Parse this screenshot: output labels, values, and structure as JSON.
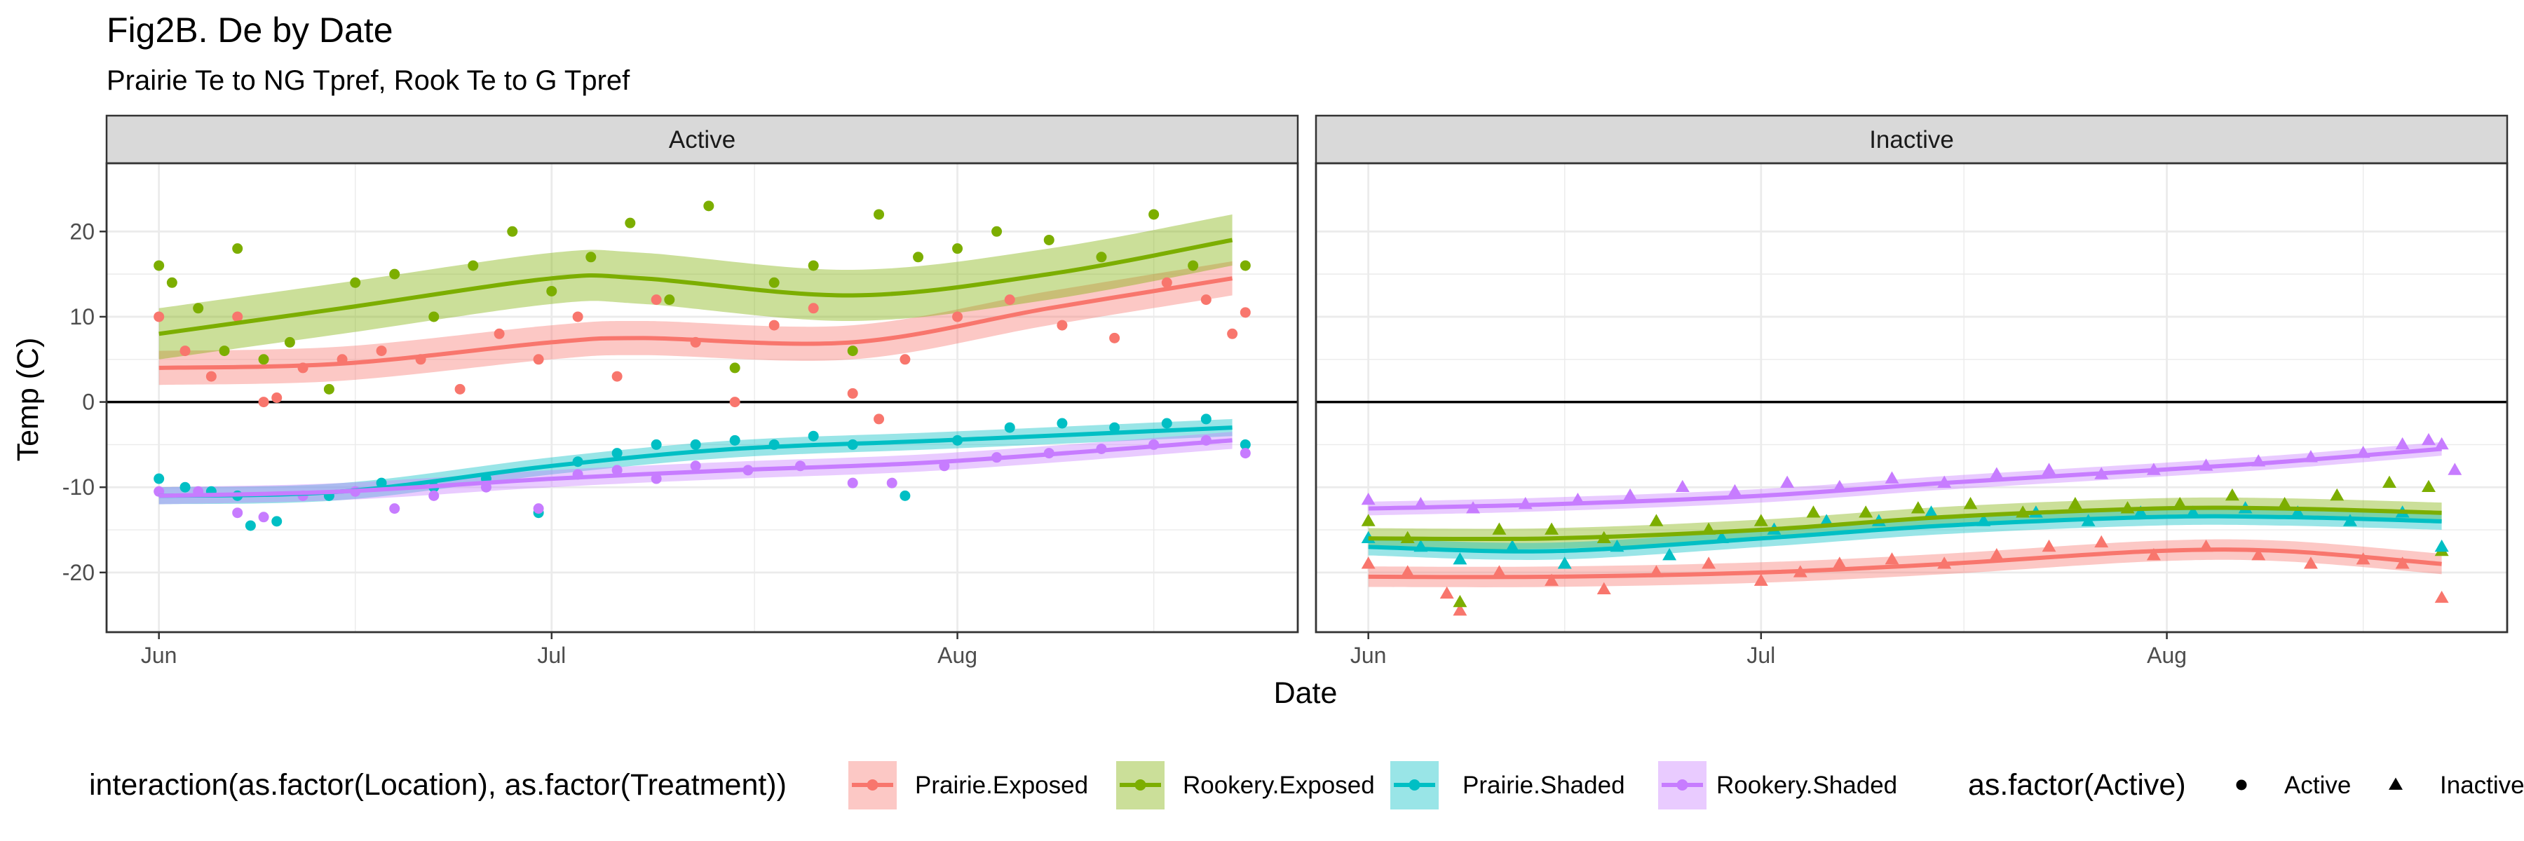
{
  "title": "Fig2B. De by Date",
  "subtitle": "Prairie Te to NG Tpref, Rook Te to G Tpref",
  "chart_data": {
    "type": "scatter",
    "facets": [
      "Active",
      "Inactive"
    ],
    "xlabel": "Date",
    "ylabel": "Temp (C)",
    "x_ticks": [
      {
        "label": "Jun",
        "date": "2021-06-01"
      },
      {
        "label": "Jul",
        "date": "2021-07-01"
      },
      {
        "label": "Aug",
        "date": "2021-08-01"
      }
    ],
    "xlim": [
      "2021-05-28",
      "2021-08-27"
    ],
    "y_ticks": [
      -20,
      -10,
      0,
      10,
      20
    ],
    "ylim": [
      -27,
      28
    ],
    "reference_line_y": 0,
    "grid": true,
    "smoother": "loess with confidence band",
    "colors": {
      "Prairie.Exposed": "#F8766D",
      "Rookery.Exposed": "#7CAE00",
      "Prairie.Shaded": "#00BFC4",
      "Rookery.Shaded": "#C77CFF"
    },
    "shapes": {
      "Active": "circle",
      "Inactive": "triangle"
    },
    "legend": {
      "position": "bottom",
      "color_title": "interaction(as.factor(Location), as.factor(Treatment))",
      "color_entries": [
        "Prairie.Exposed",
        "Rookery.Exposed",
        "Prairie.Shaded",
        "Rookery.Shaded"
      ],
      "shape_title": "as.factor(Active)",
      "shape_entries": [
        "Active",
        "Inactive"
      ]
    },
    "trend": {
      "Active": {
        "Prairie.Exposed": {
          "x": [
            "2021-06-01",
            "2021-06-15",
            "2021-07-01",
            "2021-07-08",
            "2021-07-24",
            "2021-08-08",
            "2021-08-22"
          ],
          "y": [
            4,
            4.5,
            7,
            7.5,
            7,
            11,
            14.5
          ],
          "band": 2
        },
        "Rookery.Exposed": {
          "x": [
            "2021-06-01",
            "2021-06-15",
            "2021-07-01",
            "2021-07-08",
            "2021-07-24",
            "2021-08-08",
            "2021-08-22"
          ],
          "y": [
            8,
            11,
            14.5,
            14.5,
            12.5,
            15,
            19
          ],
          "band": 3
        },
        "Prairie.Shaded": {
          "x": [
            "2021-06-01",
            "2021-06-15",
            "2021-07-01",
            "2021-07-15",
            "2021-07-31",
            "2021-08-22"
          ],
          "y": [
            -11,
            -10.5,
            -7.5,
            -5.5,
            -4.5,
            -3
          ],
          "band": 1
        },
        "Rookery.Shaded": {
          "x": [
            "2021-06-01",
            "2021-06-15",
            "2021-07-01",
            "2021-07-15",
            "2021-07-31",
            "2021-08-22"
          ],
          "y": [
            -11,
            -10.5,
            -9,
            -8,
            -7,
            -4.5
          ],
          "band": 1
        }
      },
      "Inactive": {
        "Prairie.Exposed": {
          "x": [
            "2021-06-01",
            "2021-06-15",
            "2021-07-01",
            "2021-07-15",
            "2021-07-31",
            "2021-08-10",
            "2021-08-22"
          ],
          "y": [
            -20.5,
            -20.5,
            -20,
            -19,
            -17.5,
            -17.5,
            -19
          ],
          "band": 1.2
        },
        "Rookery.Exposed": {
          "x": [
            "2021-06-01",
            "2021-06-15",
            "2021-07-01",
            "2021-07-15",
            "2021-07-31",
            "2021-08-10",
            "2021-08-22"
          ],
          "y": [
            -16,
            -16,
            -15,
            -13.5,
            -12.5,
            -12.5,
            -13
          ],
          "band": 1.2
        },
        "Prairie.Shaded": {
          "x": [
            "2021-06-01",
            "2021-06-15",
            "2021-07-01",
            "2021-07-15",
            "2021-07-31",
            "2021-08-10",
            "2021-08-22"
          ],
          "y": [
            -17,
            -17.5,
            -16,
            -14.5,
            -13.5,
            -13.5,
            -14
          ],
          "band": 1
        },
        "Rookery.Shaded": {
          "x": [
            "2021-06-01",
            "2021-06-15",
            "2021-07-01",
            "2021-07-15",
            "2021-07-31",
            "2021-08-10",
            "2021-08-22"
          ],
          "y": [
            -12.5,
            -12,
            -11,
            -9.5,
            -8,
            -7,
            -5.5
          ],
          "band": 0.8
        }
      }
    },
    "points": {
      "Active": {
        "Prairie.Exposed": [
          [
            "2021-06-01",
            10
          ],
          [
            "2021-06-03",
            6
          ],
          [
            "2021-06-05",
            3
          ],
          [
            "2021-06-07",
            10
          ],
          [
            "2021-06-09",
            0
          ],
          [
            "2021-06-10",
            0.5
          ],
          [
            "2021-06-12",
            4
          ],
          [
            "2021-06-15",
            5
          ],
          [
            "2021-06-18",
            6
          ],
          [
            "2021-06-21",
            5
          ],
          [
            "2021-06-24",
            1.5
          ],
          [
            "2021-06-27",
            8
          ],
          [
            "2021-06-30",
            5
          ],
          [
            "2021-07-03",
            10
          ],
          [
            "2021-07-06",
            3
          ],
          [
            "2021-07-09",
            12
          ],
          [
            "2021-07-12",
            7
          ],
          [
            "2021-07-15",
            0
          ],
          [
            "2021-07-18",
            9
          ],
          [
            "2021-07-21",
            11
          ],
          [
            "2021-07-24",
            1
          ],
          [
            "2021-07-26",
            -2
          ],
          [
            "2021-07-28",
            5
          ],
          [
            "2021-08-01",
            10
          ],
          [
            "2021-08-05",
            12
          ],
          [
            "2021-08-09",
            9
          ],
          [
            "2021-08-13",
            7.5
          ],
          [
            "2021-08-17",
            14
          ],
          [
            "2021-08-20",
            12
          ],
          [
            "2021-08-22",
            8
          ],
          [
            "2021-08-23",
            10.5
          ]
        ],
        "Rookery.Exposed": [
          [
            "2021-06-01",
            16
          ],
          [
            "2021-06-02",
            14
          ],
          [
            "2021-06-04",
            11
          ],
          [
            "2021-06-06",
            6
          ],
          [
            "2021-06-07",
            18
          ],
          [
            "2021-06-09",
            5
          ],
          [
            "2021-06-11",
            7
          ],
          [
            "2021-06-14",
            1.5
          ],
          [
            "2021-06-16",
            14
          ],
          [
            "2021-06-19",
            15
          ],
          [
            "2021-06-22",
            10
          ],
          [
            "2021-06-25",
            16
          ],
          [
            "2021-06-28",
            20
          ],
          [
            "2021-07-01",
            13
          ],
          [
            "2021-07-04",
            17
          ],
          [
            "2021-07-07",
            21
          ],
          [
            "2021-07-10",
            12
          ],
          [
            "2021-07-13",
            23
          ],
          [
            "2021-07-15",
            4
          ],
          [
            "2021-07-18",
            14
          ],
          [
            "2021-07-21",
            16
          ],
          [
            "2021-07-24",
            6
          ],
          [
            "2021-07-26",
            22
          ],
          [
            "2021-07-29",
            17
          ],
          [
            "2021-08-01",
            18
          ],
          [
            "2021-08-04",
            20
          ],
          [
            "2021-08-08",
            19
          ],
          [
            "2021-08-12",
            17
          ],
          [
            "2021-08-16",
            22
          ],
          [
            "2021-08-19",
            16
          ],
          [
            "2021-08-23",
            16
          ]
        ],
        "Prairie.Shaded": [
          [
            "2021-06-01",
            -9
          ],
          [
            "2021-06-03",
            -10
          ],
          [
            "2021-06-05",
            -10.5
          ],
          [
            "2021-06-07",
            -11
          ],
          [
            "2021-06-08",
            -14.5
          ],
          [
            "2021-06-10",
            -14
          ],
          [
            "2021-06-14",
            -11
          ],
          [
            "2021-06-18",
            -9.5
          ],
          [
            "2021-06-22",
            -10
          ],
          [
            "2021-06-26",
            -9
          ],
          [
            "2021-06-30",
            -13
          ],
          [
            "2021-07-03",
            -7
          ],
          [
            "2021-07-06",
            -6
          ],
          [
            "2021-07-09",
            -5
          ],
          [
            "2021-07-12",
            -5
          ],
          [
            "2021-07-15",
            -4.5
          ],
          [
            "2021-07-18",
            -5
          ],
          [
            "2021-07-21",
            -4
          ],
          [
            "2021-07-24",
            -5
          ],
          [
            "2021-07-28",
            -11
          ],
          [
            "2021-08-01",
            -4.5
          ],
          [
            "2021-08-05",
            -3
          ],
          [
            "2021-08-09",
            -2.5
          ],
          [
            "2021-08-13",
            -3
          ],
          [
            "2021-08-17",
            -2.5
          ],
          [
            "2021-08-20",
            -2
          ],
          [
            "2021-08-23",
            -5
          ]
        ],
        "Rookery.Shaded": [
          [
            "2021-06-01",
            -10.5
          ],
          [
            "2021-06-04",
            -10.5
          ],
          [
            "2021-06-07",
            -13
          ],
          [
            "2021-06-09",
            -13.5
          ],
          [
            "2021-06-12",
            -11
          ],
          [
            "2021-06-16",
            -10.5
          ],
          [
            "2021-06-19",
            -12.5
          ],
          [
            "2021-06-22",
            -11
          ],
          [
            "2021-06-26",
            -10
          ],
          [
            "2021-06-30",
            -12.5
          ],
          [
            "2021-07-03",
            -8.5
          ],
          [
            "2021-07-06",
            -8
          ],
          [
            "2021-07-09",
            -9
          ],
          [
            "2021-07-12",
            -7.5
          ],
          [
            "2021-07-16",
            -8
          ],
          [
            "2021-07-20",
            -7.5
          ],
          [
            "2021-07-24",
            -9.5
          ],
          [
            "2021-07-27",
            -9.5
          ],
          [
            "2021-07-31",
            -7.5
          ],
          [
            "2021-08-04",
            -6.5
          ],
          [
            "2021-08-08",
            -6
          ],
          [
            "2021-08-12",
            -5.5
          ],
          [
            "2021-08-16",
            -5
          ],
          [
            "2021-08-20",
            -4.5
          ],
          [
            "2021-08-23",
            -6
          ]
        ]
      },
      "Inactive": {
        "Prairie.Exposed": [
          [
            "2021-06-01",
            -19
          ],
          [
            "2021-06-04",
            -20
          ],
          [
            "2021-06-07",
            -22.5
          ],
          [
            "2021-06-08",
            -24.5
          ],
          [
            "2021-06-11",
            -20
          ],
          [
            "2021-06-15",
            -21
          ],
          [
            "2021-06-19",
            -22
          ],
          [
            "2021-06-23",
            -20
          ],
          [
            "2021-06-27",
            -19
          ],
          [
            "2021-07-01",
            -21
          ],
          [
            "2021-07-04",
            -20
          ],
          [
            "2021-07-07",
            -19
          ],
          [
            "2021-07-11",
            -18.5
          ],
          [
            "2021-07-15",
            -19
          ],
          [
            "2021-07-19",
            -18
          ],
          [
            "2021-07-23",
            -17
          ],
          [
            "2021-07-27",
            -16.5
          ],
          [
            "2021-07-31",
            -18
          ],
          [
            "2021-08-04",
            -17
          ],
          [
            "2021-08-08",
            -18
          ],
          [
            "2021-08-12",
            -19
          ],
          [
            "2021-08-16",
            -18.5
          ],
          [
            "2021-08-19",
            -19
          ],
          [
            "2021-08-22",
            -23
          ]
        ],
        "Rookery.Exposed": [
          [
            "2021-06-01",
            -14
          ],
          [
            "2021-06-04",
            -16
          ],
          [
            "2021-06-08",
            -23.5
          ],
          [
            "2021-06-11",
            -15
          ],
          [
            "2021-06-15",
            -15
          ],
          [
            "2021-06-19",
            -16
          ],
          [
            "2021-06-23",
            -14
          ],
          [
            "2021-06-27",
            -15
          ],
          [
            "2021-07-01",
            -14
          ],
          [
            "2021-07-05",
            -13
          ],
          [
            "2021-07-09",
            -13
          ],
          [
            "2021-07-13",
            -12.5
          ],
          [
            "2021-07-17",
            -12
          ],
          [
            "2021-07-21",
            -13
          ],
          [
            "2021-07-25",
            -12
          ],
          [
            "2021-07-29",
            -12.5
          ],
          [
            "2021-08-02",
            -12
          ],
          [
            "2021-08-06",
            -11
          ],
          [
            "2021-08-10",
            -12
          ],
          [
            "2021-08-14",
            -11
          ],
          [
            "2021-08-18",
            -9.5
          ],
          [
            "2021-08-21",
            -10
          ],
          [
            "2021-08-22",
            -17.5
          ]
        ],
        "Prairie.Shaded": [
          [
            "2021-06-01",
            -16
          ],
          [
            "2021-06-05",
            -17
          ],
          [
            "2021-06-08",
            -18.5
          ],
          [
            "2021-06-12",
            -17
          ],
          [
            "2021-06-16",
            -19
          ],
          [
            "2021-06-20",
            -17
          ],
          [
            "2021-06-24",
            -18
          ],
          [
            "2021-06-28",
            -16
          ],
          [
            "2021-07-02",
            -15
          ],
          [
            "2021-07-06",
            -14
          ],
          [
            "2021-07-10",
            -14
          ],
          [
            "2021-07-14",
            -13
          ],
          [
            "2021-07-18",
            -14
          ],
          [
            "2021-07-22",
            -13
          ],
          [
            "2021-07-26",
            -14
          ],
          [
            "2021-07-30",
            -13
          ],
          [
            "2021-08-03",
            -13
          ],
          [
            "2021-08-07",
            -12.5
          ],
          [
            "2021-08-11",
            -13
          ],
          [
            "2021-08-15",
            -14
          ],
          [
            "2021-08-19",
            -13
          ],
          [
            "2021-08-22",
            -17
          ]
        ],
        "Rookery.Shaded": [
          [
            "2021-06-01",
            -11.5
          ],
          [
            "2021-06-05",
            -12
          ],
          [
            "2021-06-09",
            -12.5
          ],
          [
            "2021-06-13",
            -12
          ],
          [
            "2021-06-17",
            -11.5
          ],
          [
            "2021-06-21",
            -11
          ],
          [
            "2021-06-25",
            -10
          ],
          [
            "2021-06-29",
            -10.5
          ],
          [
            "2021-07-03",
            -9.5
          ],
          [
            "2021-07-07",
            -10
          ],
          [
            "2021-07-11",
            -9
          ],
          [
            "2021-07-15",
            -9.5
          ],
          [
            "2021-07-19",
            -8.5
          ],
          [
            "2021-07-23",
            -8
          ],
          [
            "2021-07-27",
            -8.5
          ],
          [
            "2021-07-31",
            -8
          ],
          [
            "2021-08-04",
            -7.5
          ],
          [
            "2021-08-08",
            -7
          ],
          [
            "2021-08-12",
            -6.5
          ],
          [
            "2021-08-16",
            -6
          ],
          [
            "2021-08-19",
            -5
          ],
          [
            "2021-08-21",
            -4.5
          ],
          [
            "2021-08-22",
            -5
          ],
          [
            "2021-08-23",
            -8
          ]
        ]
      }
    }
  }
}
